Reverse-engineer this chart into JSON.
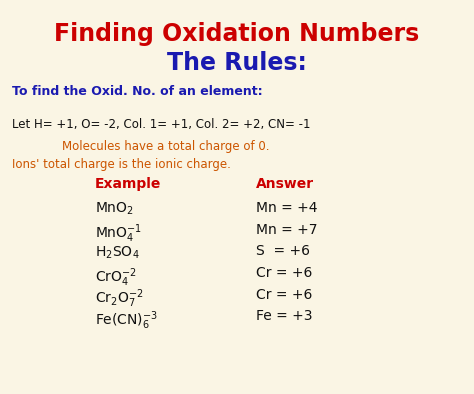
{
  "bg_color": "#faf5e4",
  "title1": "Finding Oxidation Numbers",
  "title2": "The Rules:",
  "title1_color": "#cc0000",
  "title2_color": "#1a1ab0",
  "subtitle": "To find the Oxid. No. of an element:",
  "subtitle_color": "#1a1ab0",
  "rule_line": "Let H= +1, O= -2, Col. 1= +1, Col. 2= +2, CN= -1",
  "rule_line_color": "#111111",
  "orange_line1": "Molecules have a total charge of 0.",
  "orange_line2": "Ions' total charge is the ionic charge.",
  "orange_color": "#cc5500",
  "col_header_example": "Example",
  "col_header_answer": "Answer",
  "col_header_color": "#cc0000",
  "example_color": "#111111",
  "answer_color": "#111111",
  "title1_fontsize": 17,
  "title2_fontsize": 17,
  "subtitle_fontsize": 9,
  "rule_fontsize": 8.5,
  "orange_fontsize": 8.5,
  "header_fontsize": 10,
  "row_fontsize": 10
}
